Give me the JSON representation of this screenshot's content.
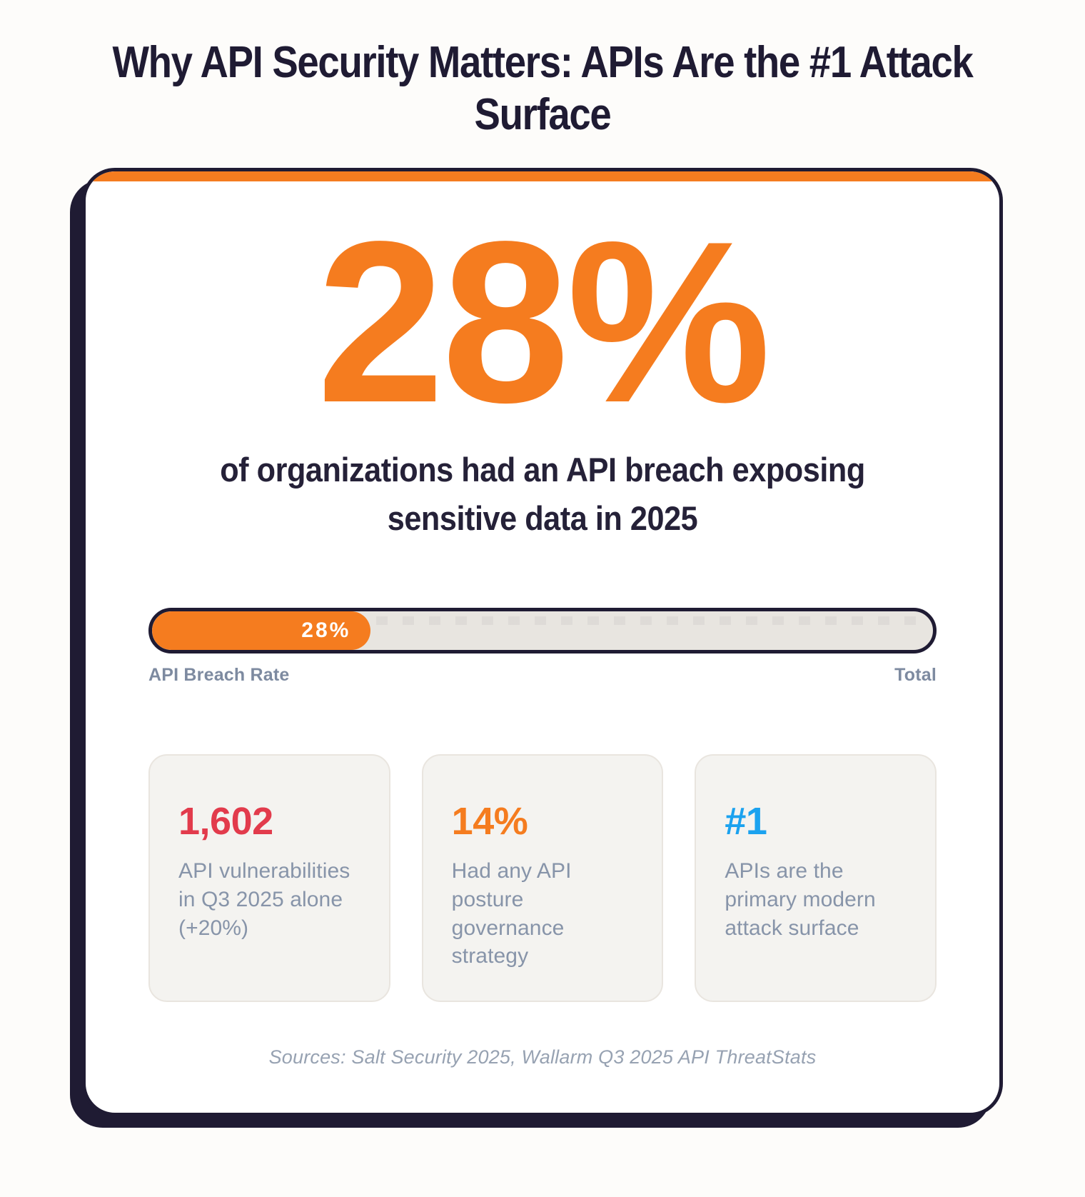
{
  "page": {
    "title": "Why API Security Matters: APIs Are the #1 Attack Surface"
  },
  "hero": {
    "value": "28%",
    "caption": "of organizations had an API breach exposing sensitive data in 2025"
  },
  "progress": {
    "percent": 28,
    "fill_label": "28%",
    "left_label": "API Breach Rate",
    "right_label": "Total"
  },
  "stats": [
    {
      "value": "1,602",
      "color": "#e23b4c",
      "description": "API vulnerabilities in Q3 2025 alone (+20%)"
    },
    {
      "value": "14%",
      "color": "#f57c1f",
      "description": "Had any API posture governance strategy"
    },
    {
      "value": "#1",
      "color": "#1ba2ef",
      "description": "APIs are the primary modern attack surface"
    }
  ],
  "footer": {
    "sources": "Sources: Salt Security 2025, Wallarm Q3 2025 API ThreatStats"
  },
  "colors": {
    "accent_orange": "#f57c1f",
    "navy": "#1f1b33",
    "stat_red": "#e23b4c",
    "stat_orange": "#f57c1f",
    "stat_blue": "#1ba2ef",
    "track_gray": "#e8e5e0",
    "muted_text": "#8794a9"
  },
  "chart_data": {
    "type": "bar",
    "title": "Why API Security Matters: APIs Are the #1 Attack Surface",
    "categories": [
      "API Breach Rate"
    ],
    "values": [
      28
    ],
    "value_unit": "%",
    "xlabel": "",
    "ylabel": "",
    "xlim": [
      0,
      100
    ],
    "axis_end_label": "Total",
    "orientation": "horizontal",
    "annotations": [
      "28% of organizations had an API breach exposing sensitive data in 2025",
      "1,602 API vulnerabilities in Q3 2025 alone (+20%)",
      "14% Had any API posture governance strategy",
      "#1 APIs are the primary modern attack surface"
    ],
    "source_note": "Sources: Salt Security 2025, Wallarm Q3 2025 API ThreatStats"
  }
}
